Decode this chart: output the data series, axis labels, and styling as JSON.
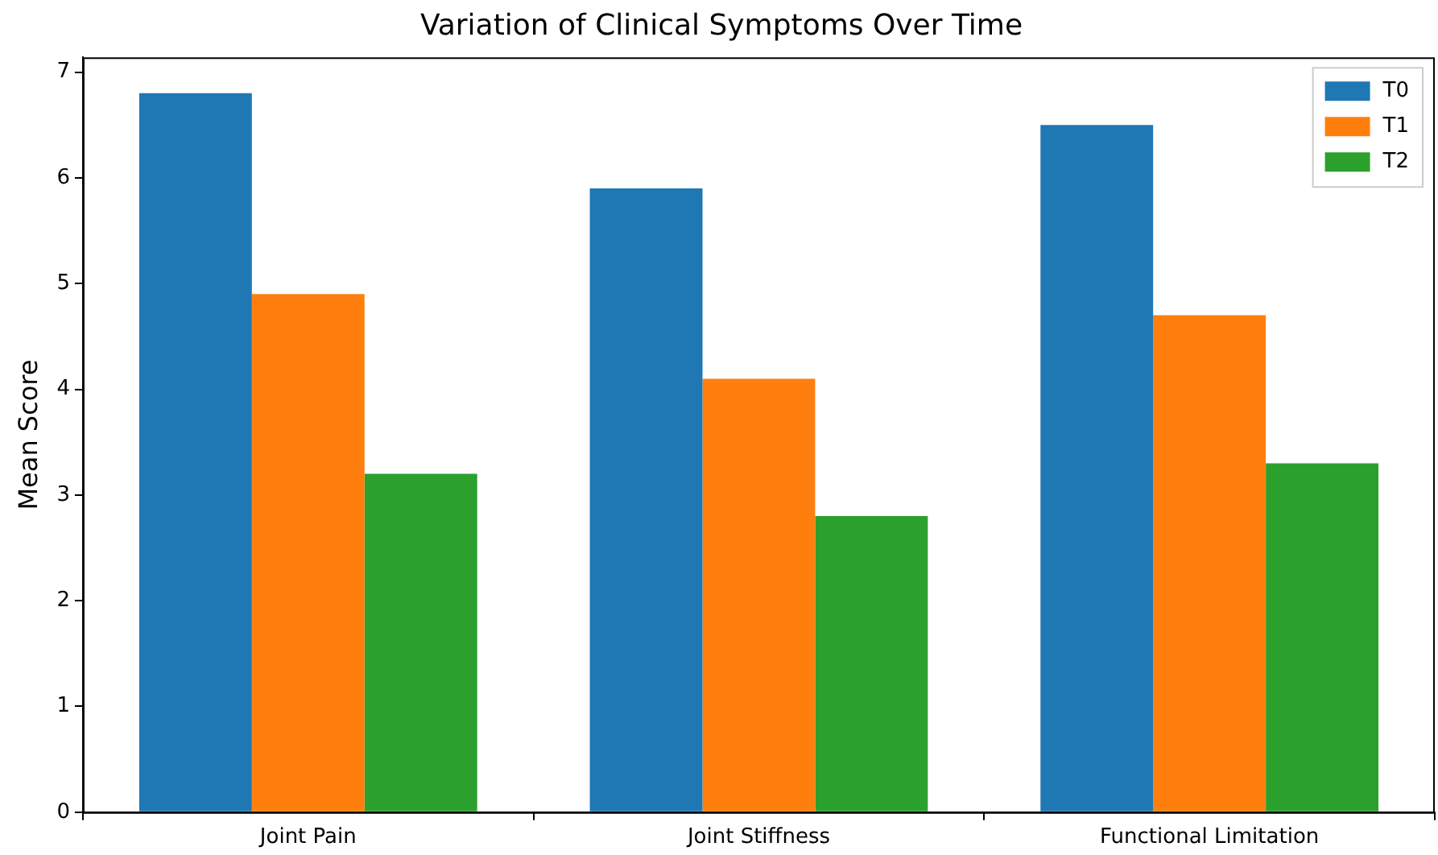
{
  "chart_data": {
    "type": "bar",
    "title": "Variation of Clinical Symptoms Over Time",
    "ylabel": "Mean Score",
    "categories": [
      "Joint Pain",
      "Joint Stiffness",
      "Functional Limitation"
    ],
    "series": [
      {
        "name": "T0",
        "color": "#1f77b4",
        "values": [
          6.8,
          5.9,
          6.5
        ]
      },
      {
        "name": "T1",
        "color": "#ff7f0e",
        "values": [
          4.9,
          4.1,
          4.7
        ]
      },
      {
        "name": "T2",
        "color": "#2ca02c",
        "values": [
          3.2,
          2.8,
          3.3
        ]
      }
    ],
    "ylim": [
      0,
      7.14
    ],
    "yticks": [
      0,
      1,
      2,
      3,
      4,
      5,
      6,
      7
    ],
    "grid": false,
    "legend": "top right"
  }
}
